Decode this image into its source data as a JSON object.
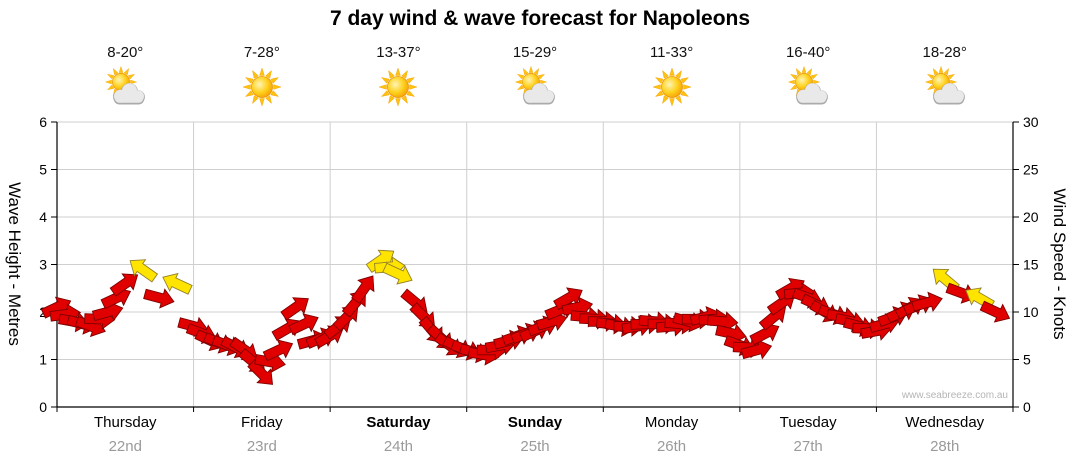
{
  "title": "7 day wind & wave forecast for Napoleons",
  "watermark": "www.seabreeze.com.au",
  "left_axis": {
    "title": "Wave Height - Metres",
    "ticks": [
      0,
      1,
      2,
      3,
      4,
      5,
      6
    ]
  },
  "right_axis": {
    "title": "Wind Speed - Knots",
    "ticks": [
      0,
      5,
      10,
      15,
      20,
      25,
      30
    ]
  },
  "days": [
    {
      "name": "Thursday",
      "date": "22nd",
      "temp": "8-20°",
      "icon": "sun-cloud",
      "bold": false
    },
    {
      "name": "Friday",
      "date": "23rd",
      "temp": "7-28°",
      "icon": "sun",
      "bold": false
    },
    {
      "name": "Saturday",
      "date": "24th",
      "temp": "13-37°",
      "icon": "sun",
      "bold": true
    },
    {
      "name": "Sunday",
      "date": "25th",
      "temp": "15-29°",
      "icon": "sun-cloud",
      "bold": true
    },
    {
      "name": "Monday",
      "date": "26th",
      "temp": "11-33°",
      "icon": "sun",
      "bold": false
    },
    {
      "name": "Tuesday",
      "date": "27th",
      "temp": "16-40°",
      "icon": "sun-cloud",
      "bold": false
    },
    {
      "name": "Wednesday",
      "date": "28th",
      "temp": "18-28°",
      "icon": "sun-cloud",
      "bold": false
    }
  ],
  "chart_data": {
    "type": "line",
    "subtype": "wind-direction-arrows",
    "title": "7 day wind & wave forecast for Napoleons",
    "x_unit": "days (0 = start of Thursday 22nd, 7 = end of Wednesday 28th)",
    "y_left": {
      "label": "Wave Height - Metres",
      "range": [
        0,
        6
      ]
    },
    "y_right": {
      "label": "Wind Speed - Knots",
      "range": [
        0,
        30
      ]
    },
    "legend": "red arrows = wind, yellow arrows = stronger gust periods",
    "grid": true,
    "colors": {
      "red": "#E10000",
      "yellow": "#FFE400"
    },
    "points_columns": [
      "time_days",
      "wind_knots",
      "direction_deg",
      "color"
    ],
    "points": [
      [
        0.0,
        10.5,
        -25,
        "r"
      ],
      [
        0.125,
        9,
        10,
        "r"
      ],
      [
        0.25,
        8.5,
        20,
        "r"
      ],
      [
        0.375,
        10,
        -15,
        "r"
      ],
      [
        0.5,
        13,
        -35,
        "r"
      ],
      [
        0.625,
        14.5,
        -145,
        "y"
      ],
      [
        0.75,
        11.5,
        15,
        "r"
      ],
      [
        0.875,
        13,
        -155,
        "y"
      ],
      [
        1.0,
        8.5,
        15,
        "r"
      ],
      [
        1.125,
        7,
        25,
        "r"
      ],
      [
        1.25,
        6.5,
        20,
        "r"
      ],
      [
        1.375,
        6,
        35,
        "r"
      ],
      [
        1.5,
        3.5,
        45,
        "r"
      ],
      [
        1.625,
        6,
        -25,
        "r"
      ],
      [
        1.75,
        10.5,
        -35,
        "r"
      ],
      [
        1.875,
        7,
        -15,
        "r"
      ],
      [
        2.0,
        7.5,
        -30,
        "r"
      ],
      [
        2.125,
        9.5,
        -45,
        "r"
      ],
      [
        2.25,
        12.5,
        -55,
        "r"
      ],
      [
        2.375,
        15.5,
        -35,
        "y"
      ],
      [
        2.5,
        14,
        25,
        "y"
      ],
      [
        2.625,
        11,
        40,
        "r"
      ],
      [
        2.75,
        8,
        50,
        "r"
      ],
      [
        2.875,
        6.5,
        35,
        "r"
      ],
      [
        3.0,
        6,
        20,
        "r"
      ],
      [
        3.125,
        5.5,
        10,
        "r"
      ],
      [
        3.25,
        6.5,
        -10,
        "r"
      ],
      [
        3.375,
        7.5,
        -20,
        "r"
      ],
      [
        3.5,
        8,
        -25,
        "r"
      ],
      [
        3.625,
        9,
        -15,
        "r"
      ],
      [
        3.75,
        11.5,
        -30,
        "r"
      ],
      [
        3.875,
        9.5,
        5,
        "r"
      ],
      [
        4.0,
        9,
        0,
        "r"
      ],
      [
        4.125,
        8.5,
        10,
        "r"
      ],
      [
        4.25,
        8.5,
        -10,
        "r"
      ],
      [
        4.375,
        9,
        5,
        "r"
      ],
      [
        4.5,
        8.5,
        -5,
        "r"
      ],
      [
        4.625,
        9,
        15,
        "r"
      ],
      [
        4.75,
        9.5,
        -15,
        "r"
      ],
      [
        4.875,
        9,
        5,
        "r"
      ],
      [
        5.0,
        6.5,
        20,
        "r"
      ],
      [
        5.125,
        6,
        -15,
        "r"
      ],
      [
        5.25,
        9.5,
        -40,
        "r"
      ],
      [
        5.375,
        12.5,
        -30,
        "r"
      ],
      [
        5.5,
        11.5,
        20,
        "r"
      ],
      [
        5.625,
        10,
        30,
        "r"
      ],
      [
        5.75,
        9.5,
        10,
        "r"
      ],
      [
        5.875,
        8.5,
        15,
        "r"
      ],
      [
        6.0,
        8,
        -10,
        "r"
      ],
      [
        6.125,
        9.5,
        -20,
        "r"
      ],
      [
        6.25,
        10.5,
        -30,
        "r"
      ],
      [
        6.375,
        11,
        -15,
        "r"
      ],
      [
        6.5,
        13.5,
        -140,
        "y"
      ],
      [
        6.625,
        12,
        20,
        "r"
      ],
      [
        6.75,
        11.5,
        -150,
        "y"
      ],
      [
        6.875,
        10,
        25,
        "r"
      ]
    ]
  }
}
